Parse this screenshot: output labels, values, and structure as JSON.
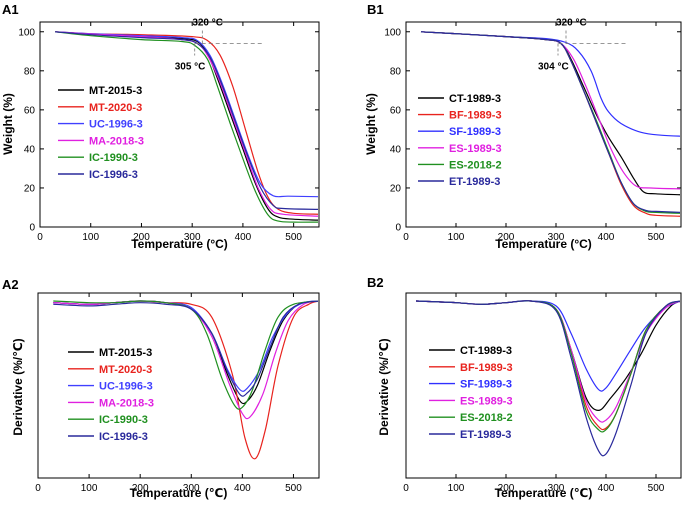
{
  "chart_data": [
    {
      "id": "A1",
      "panel_label": "A1",
      "type": "line",
      "xlabel": "Temperature (°C)",
      "ylabel": "Weight (%)",
      "xlim": [
        0,
        550
      ],
      "ylim": [
        0,
        105
      ],
      "xticks": [
        0,
        100,
        200,
        300,
        400,
        500
      ],
      "yticks": [
        0,
        20,
        40,
        60,
        80,
        100
      ],
      "legend_position": "middle-left",
      "annotations": [
        {
          "text": "320 °C",
          "x": 320,
          "y": 94
        },
        {
          "text": "305 °C",
          "x": 305,
          "y": 94
        }
      ],
      "series": [
        {
          "name": "MT-2015-3",
          "color": "#000000",
          "x": [
            30,
            100,
            200,
            280,
            310,
            330,
            350,
            375,
            400,
            425,
            450,
            470,
            500,
            550
          ],
          "y": [
            100,
            98.8,
            97.5,
            96.5,
            95,
            89,
            76,
            58,
            40,
            22,
            9,
            5,
            4,
            3.5
          ]
        },
        {
          "name": "MT-2020-3",
          "color": "#e8231e",
          "x": [
            30,
            100,
            200,
            300,
            330,
            355,
            380,
            405,
            430,
            450,
            470,
            500,
            550
          ],
          "y": [
            100,
            99,
            98.5,
            97.5,
            95.5,
            88,
            72,
            50,
            28,
            15,
            9,
            7,
            6.5
          ]
        },
        {
          "name": "UC-1996-3",
          "color": "#4040ff",
          "x": [
            30,
            100,
            200,
            280,
            310,
            335,
            360,
            385,
            410,
            435,
            460,
            490,
            550
          ],
          "y": [
            100,
            99,
            98,
            97,
            95.5,
            88,
            73,
            55,
            37,
            22,
            16,
            15.8,
            15.5
          ]
        },
        {
          "name": "MA-2018-3",
          "color": "#e020e0",
          "x": [
            30,
            100,
            200,
            280,
            310,
            330,
            355,
            380,
            405,
            430,
            455,
            480,
            550
          ],
          "y": [
            100,
            98.8,
            97.5,
            96,
            94,
            88,
            74,
            56,
            38,
            20,
            9,
            6.5,
            5.5
          ]
        },
        {
          "name": "IC-1990-3",
          "color": "#209020",
          "x": [
            30,
            100,
            200,
            280,
            305,
            330,
            350,
            375,
            400,
            425,
            450,
            470,
            500,
            550
          ],
          "y": [
            100,
            98,
            96,
            95,
            93,
            86,
            72,
            53,
            35,
            18,
            6,
            3,
            2.5,
            2.5
          ]
        },
        {
          "name": "IC-1996-3",
          "color": "#2a2a9c",
          "x": [
            30,
            100,
            200,
            280,
            310,
            335,
            360,
            385,
            410,
            435,
            460,
            480,
            550
          ],
          "y": [
            100,
            98.5,
            97,
            96,
            94,
            87,
            72,
            54,
            36,
            20,
            11,
            9.5,
            9
          ]
        }
      ]
    },
    {
      "id": "B1",
      "panel_label": "B1",
      "type": "line",
      "xlabel": "Temperature (°C)",
      "ylabel": "Weight (%)",
      "xlim": [
        0,
        550
      ],
      "ylim": [
        0,
        105
      ],
      "xticks": [
        0,
        100,
        200,
        300,
        400,
        500
      ],
      "yticks": [
        0,
        20,
        40,
        60,
        80,
        100
      ],
      "legend_position": "middle-left",
      "annotations": [
        {
          "text": "320 °C",
          "x": 320,
          "y": 95
        },
        {
          "text": "304 °C",
          "x": 304,
          "y": 95
        }
      ],
      "series": [
        {
          "name": "CT-1989-3",
          "color": "#000000",
          "x": [
            30,
            100,
            200,
            280,
            310,
            330,
            355,
            380,
            405,
            430,
            455,
            475,
            500,
            550
          ],
          "y": [
            100,
            99,
            97.5,
            96,
            94,
            86,
            72,
            58,
            46,
            36,
            25,
            18,
            17,
            16.5
          ]
        },
        {
          "name": "BF-1989-3",
          "color": "#e8231e",
          "x": [
            30,
            100,
            200,
            280,
            310,
            330,
            355,
            380,
            405,
            430,
            455,
            480,
            500,
            550
          ],
          "y": [
            100,
            99,
            97.5,
            96,
            94,
            85,
            70,
            54,
            38,
            22,
            11,
            7,
            6,
            5.5
          ]
        },
        {
          "name": "SF-1989-3",
          "color": "#3030ff",
          "x": [
            30,
            100,
            200,
            280,
            320,
            345,
            370,
            390,
            405,
            430,
            470,
            510,
            550
          ],
          "y": [
            100,
            99,
            97.5,
            96.5,
            94.5,
            90,
            80,
            66,
            59,
            53,
            48.5,
            47,
            46.5
          ]
        },
        {
          "name": "ES-1989-3",
          "color": "#e020e0",
          "x": [
            30,
            100,
            200,
            280,
            310,
            335,
            360,
            385,
            410,
            435,
            460,
            490,
            550
          ],
          "y": [
            100,
            99,
            97.5,
            96,
            94,
            86,
            72,
            56,
            40,
            28,
            21,
            20,
            19.5
          ]
        },
        {
          "name": "ES-2018-2",
          "color": "#209020",
          "x": [
            30,
            100,
            200,
            280,
            310,
            330,
            355,
            380,
            405,
            430,
            455,
            480,
            500,
            550
          ],
          "y": [
            100,
            99,
            97.5,
            96,
            94,
            85,
            70,
            55,
            39,
            23,
            12,
            8,
            7.5,
            7
          ]
        },
        {
          "name": "ET-1989-3",
          "color": "#2a2a9c",
          "x": [
            30,
            100,
            200,
            280,
            310,
            330,
            355,
            380,
            405,
            430,
            455,
            480,
            500,
            550
          ],
          "y": [
            100,
            99,
            97.5,
            96,
            94,
            85,
            70,
            54,
            38,
            23,
            12,
            8.5,
            8,
            7.5
          ]
        }
      ]
    },
    {
      "id": "A2",
      "panel_label": "A2",
      "type": "line",
      "xlabel": "Temperature (℃)",
      "ylabel": "Derivative (%/℃)",
      "xlim": [
        0,
        550
      ],
      "ylim": [
        -1.1,
        0.05
      ],
      "xticks": [
        0,
        100,
        200,
        300,
        400,
        500
      ],
      "yticks": [],
      "legend_position": "bottom-left",
      "series": [
        {
          "name": "MT-2015-3",
          "color": "#000000",
          "x": [
            30,
            100,
            150,
            200,
            250,
            300,
            340,
            370,
            395,
            410,
            430,
            455,
            480,
            510,
            550
          ],
          "y": [
            -0.01,
            -0.02,
            -0.01,
            0,
            -0.01,
            -0.05,
            -0.2,
            -0.45,
            -0.62,
            -0.62,
            -0.52,
            -0.3,
            -0.12,
            -0.02,
            0
          ]
        },
        {
          "name": "MT-2020-3",
          "color": "#e8231e",
          "x": [
            30,
            100,
            150,
            200,
            250,
            300,
            340,
            380,
            405,
            425,
            445,
            470,
            500,
            530,
            550
          ],
          "y": [
            -0.01,
            -0.02,
            -0.01,
            0,
            -0.01,
            -0.02,
            -0.1,
            -0.45,
            -0.85,
            -0.98,
            -0.8,
            -0.4,
            -0.1,
            -0.02,
            0
          ]
        },
        {
          "name": "UC-1996-3",
          "color": "#4040ff",
          "x": [
            30,
            100,
            150,
            200,
            250,
            300,
            340,
            370,
            395,
            410,
            435,
            460,
            490,
            520,
            550
          ],
          "y": [
            -0.01,
            -0.02,
            -0.01,
            0,
            -0.01,
            -0.04,
            -0.2,
            -0.42,
            -0.55,
            -0.54,
            -0.42,
            -0.22,
            -0.07,
            -0.01,
            0
          ]
        },
        {
          "name": "MA-2018-3",
          "color": "#e020e0",
          "x": [
            30,
            100,
            150,
            200,
            250,
            300,
            340,
            375,
            400,
            415,
            440,
            465,
            490,
            520,
            550
          ],
          "y": [
            -0.01,
            -0.02,
            -0.01,
            0,
            -0.01,
            -0.05,
            -0.22,
            -0.52,
            -0.7,
            -0.72,
            -0.58,
            -0.32,
            -0.12,
            -0.02,
            0
          ]
        },
        {
          "name": "IC-1990-3",
          "color": "#209020",
          "x": [
            30,
            100,
            150,
            200,
            250,
            300,
            330,
            360,
            385,
            400,
            420,
            445,
            470,
            500,
            550
          ],
          "y": [
            0,
            -0.01,
            -0.01,
            0,
            -0.01,
            -0.05,
            -0.2,
            -0.48,
            -0.65,
            -0.66,
            -0.55,
            -0.3,
            -0.1,
            -0.02,
            0
          ]
        },
        {
          "name": "IC-1996-3",
          "color": "#2a2a9c",
          "x": [
            30,
            100,
            150,
            200,
            250,
            300,
            340,
            370,
            395,
            410,
            430,
            455,
            480,
            510,
            550
          ],
          "y": [
            -0.02,
            -0.03,
            -0.02,
            -0.01,
            -0.02,
            -0.05,
            -0.2,
            -0.43,
            -0.58,
            -0.57,
            -0.48,
            -0.28,
            -0.1,
            -0.02,
            0
          ]
        }
      ]
    },
    {
      "id": "B2",
      "panel_label": "B2",
      "type": "line",
      "xlabel": "Temperature (℃)",
      "ylabel": "Derivative (%/℃)",
      "xlim": [
        0,
        550
      ],
      "ylim": [
        -1.1,
        0.05
      ],
      "xticks": [
        0,
        100,
        200,
        300,
        400,
        500
      ],
      "yticks": [],
      "legend_position": "bottom-left",
      "series": [
        {
          "name": "CT-1989-3",
          "color": "#000000",
          "x": [
            20,
            100,
            150,
            200,
            250,
            300,
            330,
            360,
            385,
            410,
            440,
            470,
            500,
            530,
            550
          ],
          "y": [
            0,
            -0.01,
            -0.02,
            -0.01,
            0,
            -0.05,
            -0.3,
            -0.6,
            -0.68,
            -0.6,
            -0.48,
            -0.33,
            -0.15,
            -0.03,
            0
          ]
        },
        {
          "name": "BF-1989-3",
          "color": "#e8231e",
          "x": [
            20,
            100,
            150,
            200,
            250,
            300,
            330,
            360,
            385,
            400,
            420,
            450,
            480,
            520,
            550
          ],
          "y": [
            0,
            -0.01,
            -0.02,
            -0.01,
            0,
            -0.05,
            -0.3,
            -0.65,
            -0.78,
            -0.79,
            -0.7,
            -0.45,
            -0.18,
            -0.03,
            0
          ]
        },
        {
          "name": "SF-1989-3",
          "color": "#3030ff",
          "x": [
            20,
            100,
            150,
            200,
            250,
            300,
            330,
            360,
            385,
            400,
            420,
            450,
            480,
            520,
            550
          ],
          "y": [
            0,
            -0.01,
            -0.02,
            -0.01,
            0,
            -0.03,
            -0.2,
            -0.42,
            -0.55,
            -0.54,
            -0.45,
            -0.3,
            -0.16,
            -0.04,
            0
          ]
        },
        {
          "name": "ES-1989-3",
          "color": "#e020e0",
          "x": [
            20,
            100,
            150,
            200,
            250,
            300,
            330,
            360,
            385,
            400,
            420,
            450,
            480,
            520,
            550
          ],
          "y": [
            0,
            -0.01,
            -0.02,
            -0.01,
            0,
            -0.05,
            -0.3,
            -0.62,
            -0.74,
            -0.74,
            -0.66,
            -0.44,
            -0.2,
            -0.04,
            0
          ]
        },
        {
          "name": "ES-2018-2",
          "color": "#209020",
          "x": [
            20,
            100,
            150,
            200,
            250,
            300,
            330,
            360,
            385,
            400,
            420,
            450,
            480,
            520,
            550
          ],
          "y": [
            0,
            -0.01,
            -0.02,
            -0.01,
            0,
            -0.05,
            -0.32,
            -0.68,
            -0.8,
            -0.8,
            -0.7,
            -0.45,
            -0.18,
            -0.03,
            0
          ]
        },
        {
          "name": "ET-1989-3",
          "color": "#2a2a9c",
          "x": [
            20,
            100,
            150,
            200,
            250,
            300,
            330,
            360,
            385,
            400,
            420,
            450,
            480,
            520,
            550
          ],
          "y": [
            0,
            -0.01,
            -0.02,
            -0.01,
            0,
            -0.06,
            -0.35,
            -0.72,
            -0.93,
            -0.95,
            -0.82,
            -0.52,
            -0.2,
            -0.03,
            0
          ]
        }
      ]
    }
  ]
}
